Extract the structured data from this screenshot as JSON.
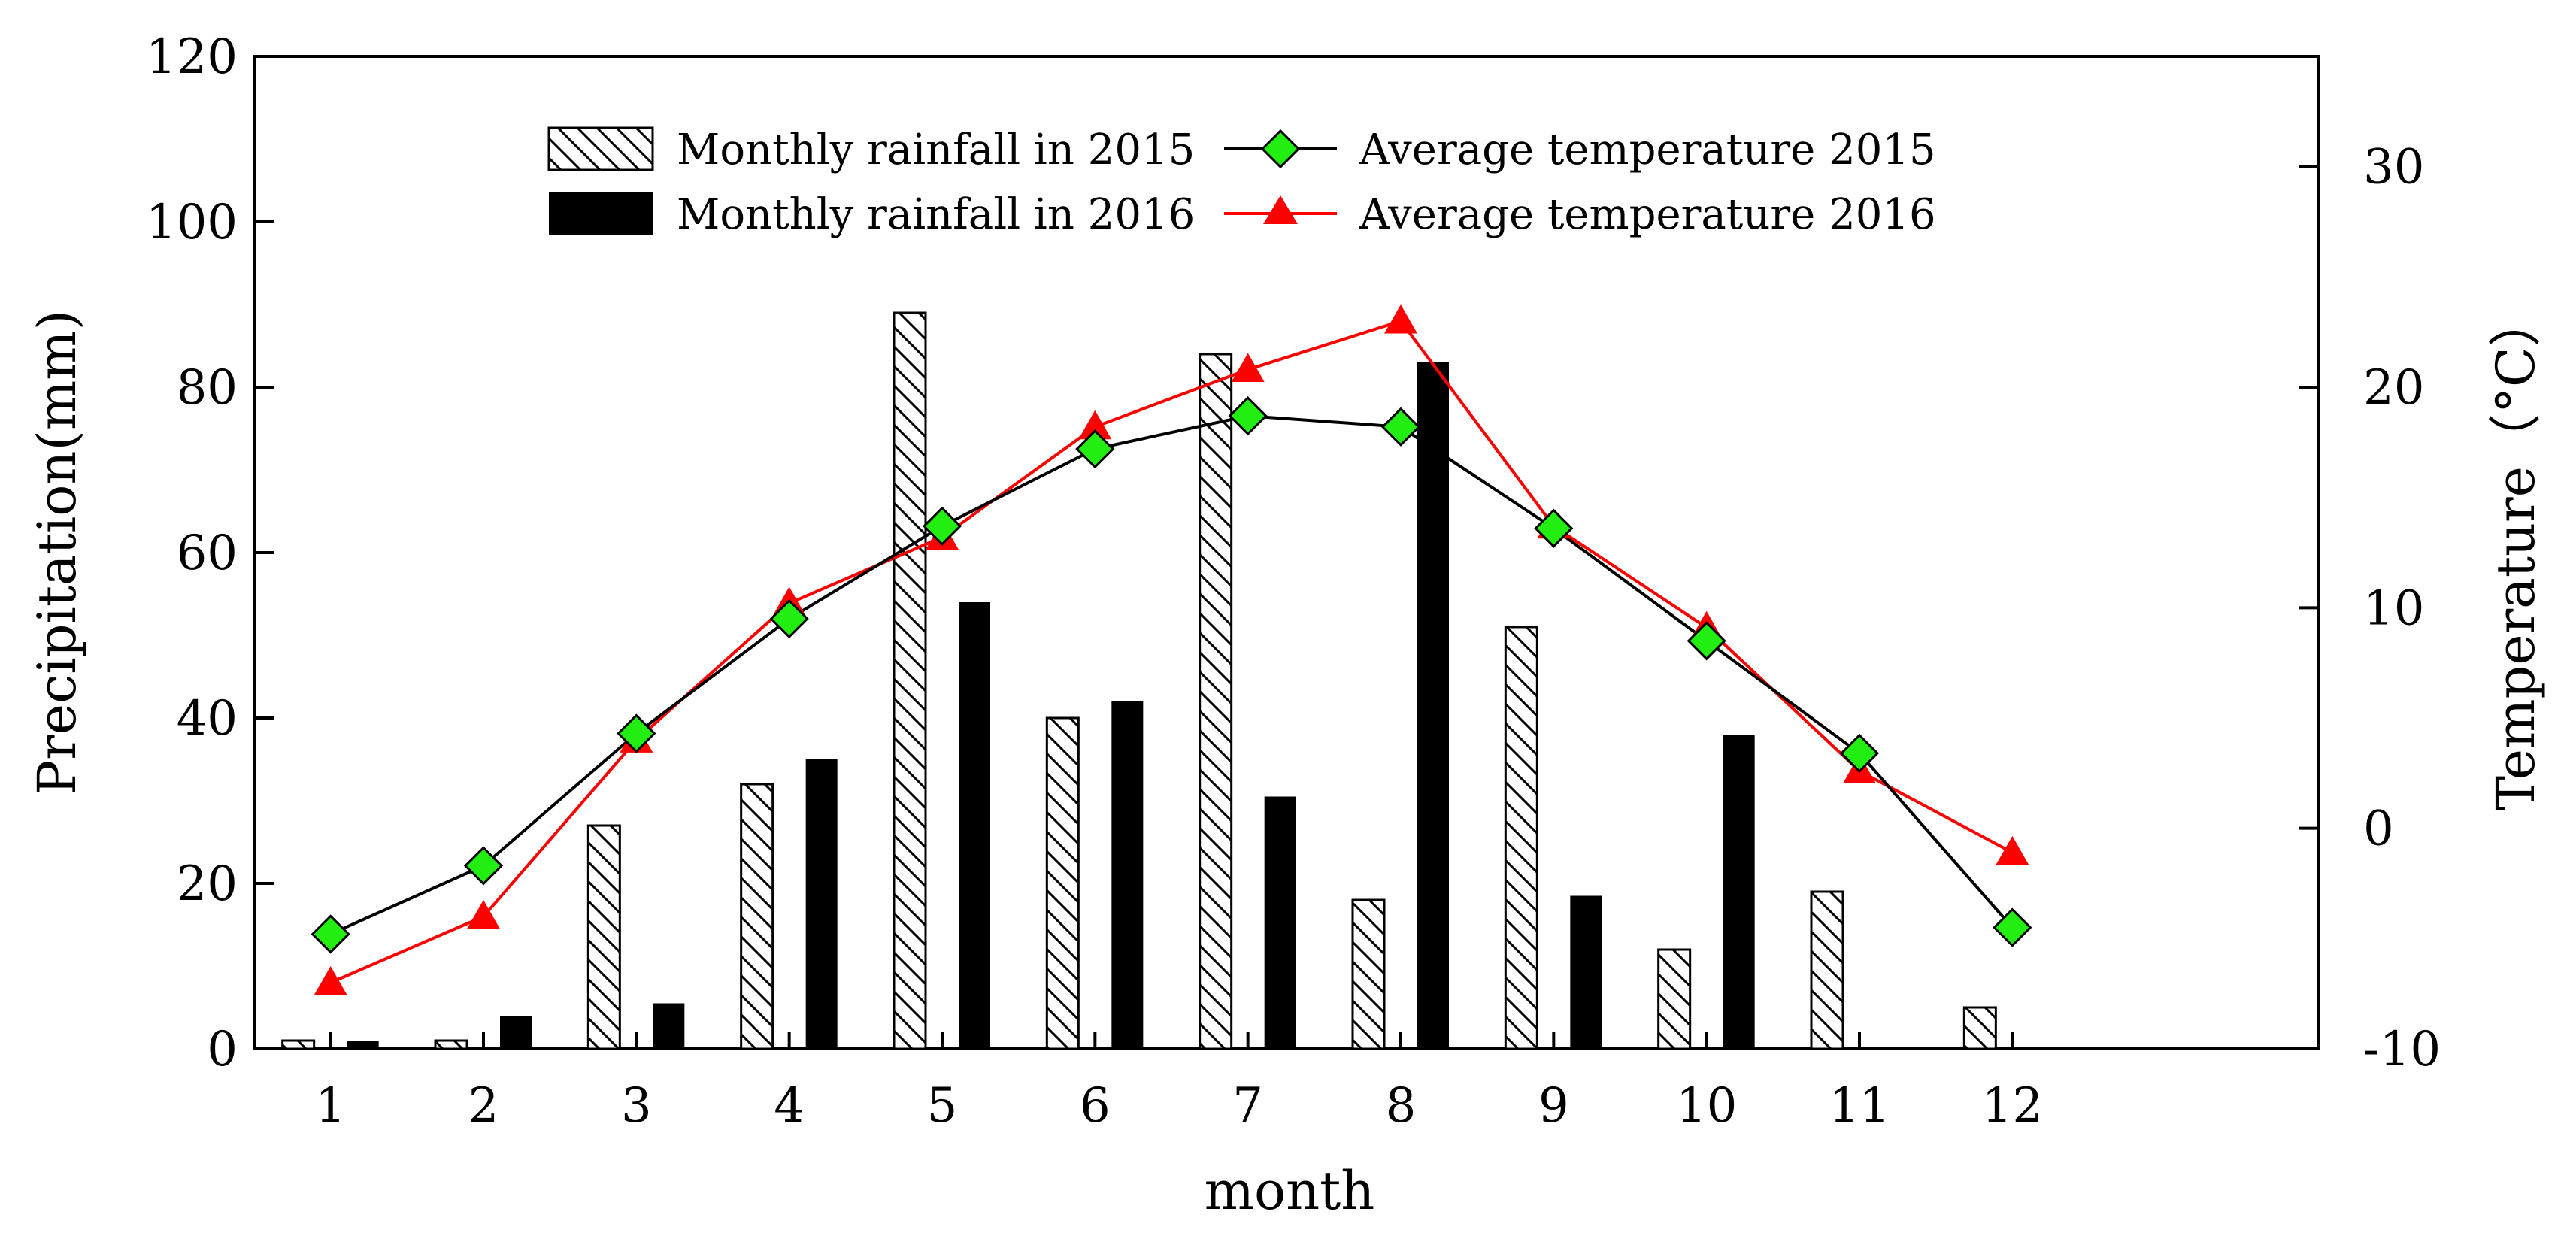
{
  "chart_data": {
    "type": "bar",
    "categories": [
      "1",
      "2",
      "3",
      "4",
      "5",
      "6",
      "7",
      "8",
      "9",
      "10",
      "11",
      "12"
    ],
    "xlabel": "month",
    "ylabel": "Precipitation(mm)",
    "y2label": "Temperature（°C）",
    "ylim": [
      0,
      120
    ],
    "y2lim": [
      -10,
      35
    ],
    "y_ticks": [
      "0",
      "20",
      "40",
      "60",
      "80",
      "100",
      "120"
    ],
    "y2_ticks": [
      "-10",
      "0",
      "10",
      "20",
      "30"
    ],
    "series": [
      {
        "name": "Monthly rainfall in 2015",
        "kind": "bar",
        "pattern": "hatched",
        "axis": "left",
        "values": [
          1,
          1,
          27,
          32,
          89,
          40,
          84,
          18,
          51,
          12,
          19,
          5
        ]
      },
      {
        "name": "Monthly rainfall in 2016",
        "kind": "bar",
        "pattern": "solid",
        "axis": "left",
        "values": [
          1,
          4,
          5.5,
          35,
          54,
          42,
          30.5,
          83,
          18.5,
          38,
          0,
          0
        ]
      },
      {
        "name": "Average temperature 2015",
        "kind": "line",
        "marker": "diamond",
        "color": "#000000",
        "marker_color": "#22ee11",
        "axis": "right",
        "values": [
          -4.8,
          -1.7,
          4.3,
          9.5,
          13.7,
          17.2,
          18.7,
          18.2,
          13.6,
          8.5,
          3.4,
          -4.5
        ]
      },
      {
        "name": "Average temperature 2016",
        "kind": "line",
        "marker": "triangle",
        "color": "#ff0000",
        "axis": "right",
        "values": [
          -7.0,
          -4.0,
          4.0,
          10.2,
          13.2,
          18.2,
          20.8,
          23.0,
          13.7,
          9.1,
          2.6,
          -1.1
        ]
      }
    ],
    "legend_position": "top-center"
  }
}
